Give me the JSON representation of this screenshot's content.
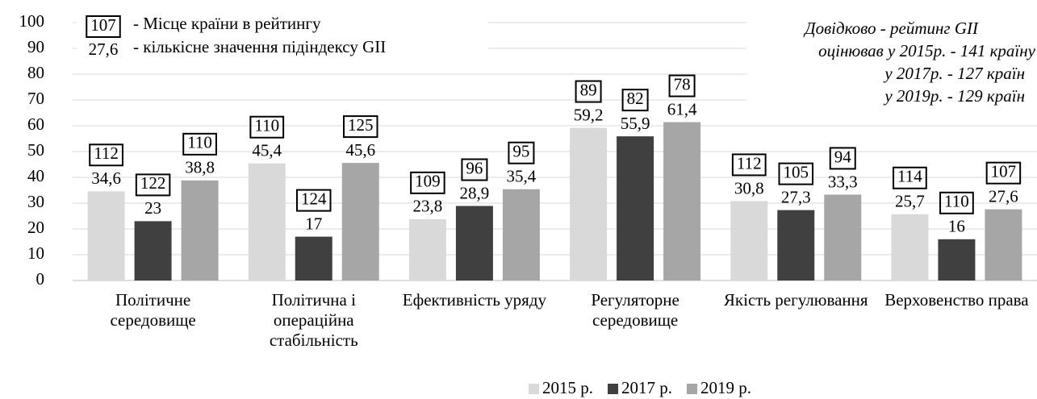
{
  "chart_data": {
    "type": "bar",
    "categories": [
      "Політичне середовище",
      "Політична і операційна стабільність",
      "Ефективність уряду",
      "Регуляторне середовище",
      "Якість регулювання",
      "Верховенство права"
    ],
    "series": [
      {
        "name": "2015 р.",
        "color": "#d9d9d9",
        "values": [
          34.6,
          45.4,
          23.8,
          59.2,
          30.8,
          25.7
        ],
        "value_labels": [
          "34,6",
          "45,4",
          "23,8",
          "59,2",
          "30,8",
          "25,7"
        ],
        "ranks": [
          112,
          110,
          109,
          89,
          112,
          114
        ]
      },
      {
        "name": "2017 р.",
        "color": "#404040",
        "values": [
          23,
          17,
          28.9,
          55.9,
          27.3,
          16
        ],
        "value_labels": [
          "23",
          "17",
          "28,9",
          "55,9",
          "27,3",
          "16"
        ],
        "ranks": [
          122,
          124,
          96,
          82,
          105,
          110
        ]
      },
      {
        "name": "2019 р.",
        "color": "#a6a6a6",
        "values": [
          38.8,
          45.6,
          35.4,
          61.4,
          33.3,
          27.6
        ],
        "value_labels": [
          "38,8",
          "45,6",
          "35,4",
          "61,4",
          "33,3",
          "27,6"
        ],
        "ranks": [
          110,
          125,
          95,
          78,
          94,
          107
        ]
      }
    ],
    "ylim": [
      0,
      100
    ],
    "yticks": [
      0,
      10,
      20,
      30,
      40,
      50,
      60,
      70,
      80,
      90,
      100
    ],
    "grid": true,
    "key": {
      "rank_example": 107,
      "rank_text": "- Місце країни в рейтингу",
      "value_example": "27,6",
      "value_text": "- кількісне значення підіндексу GII"
    },
    "note": [
      "Довідково - рейтинг GII",
      "оцінював у 2015р. - 141 країну",
      "у 2017р. - 127 країн",
      "у 2019р. - 129 країн"
    ]
  }
}
